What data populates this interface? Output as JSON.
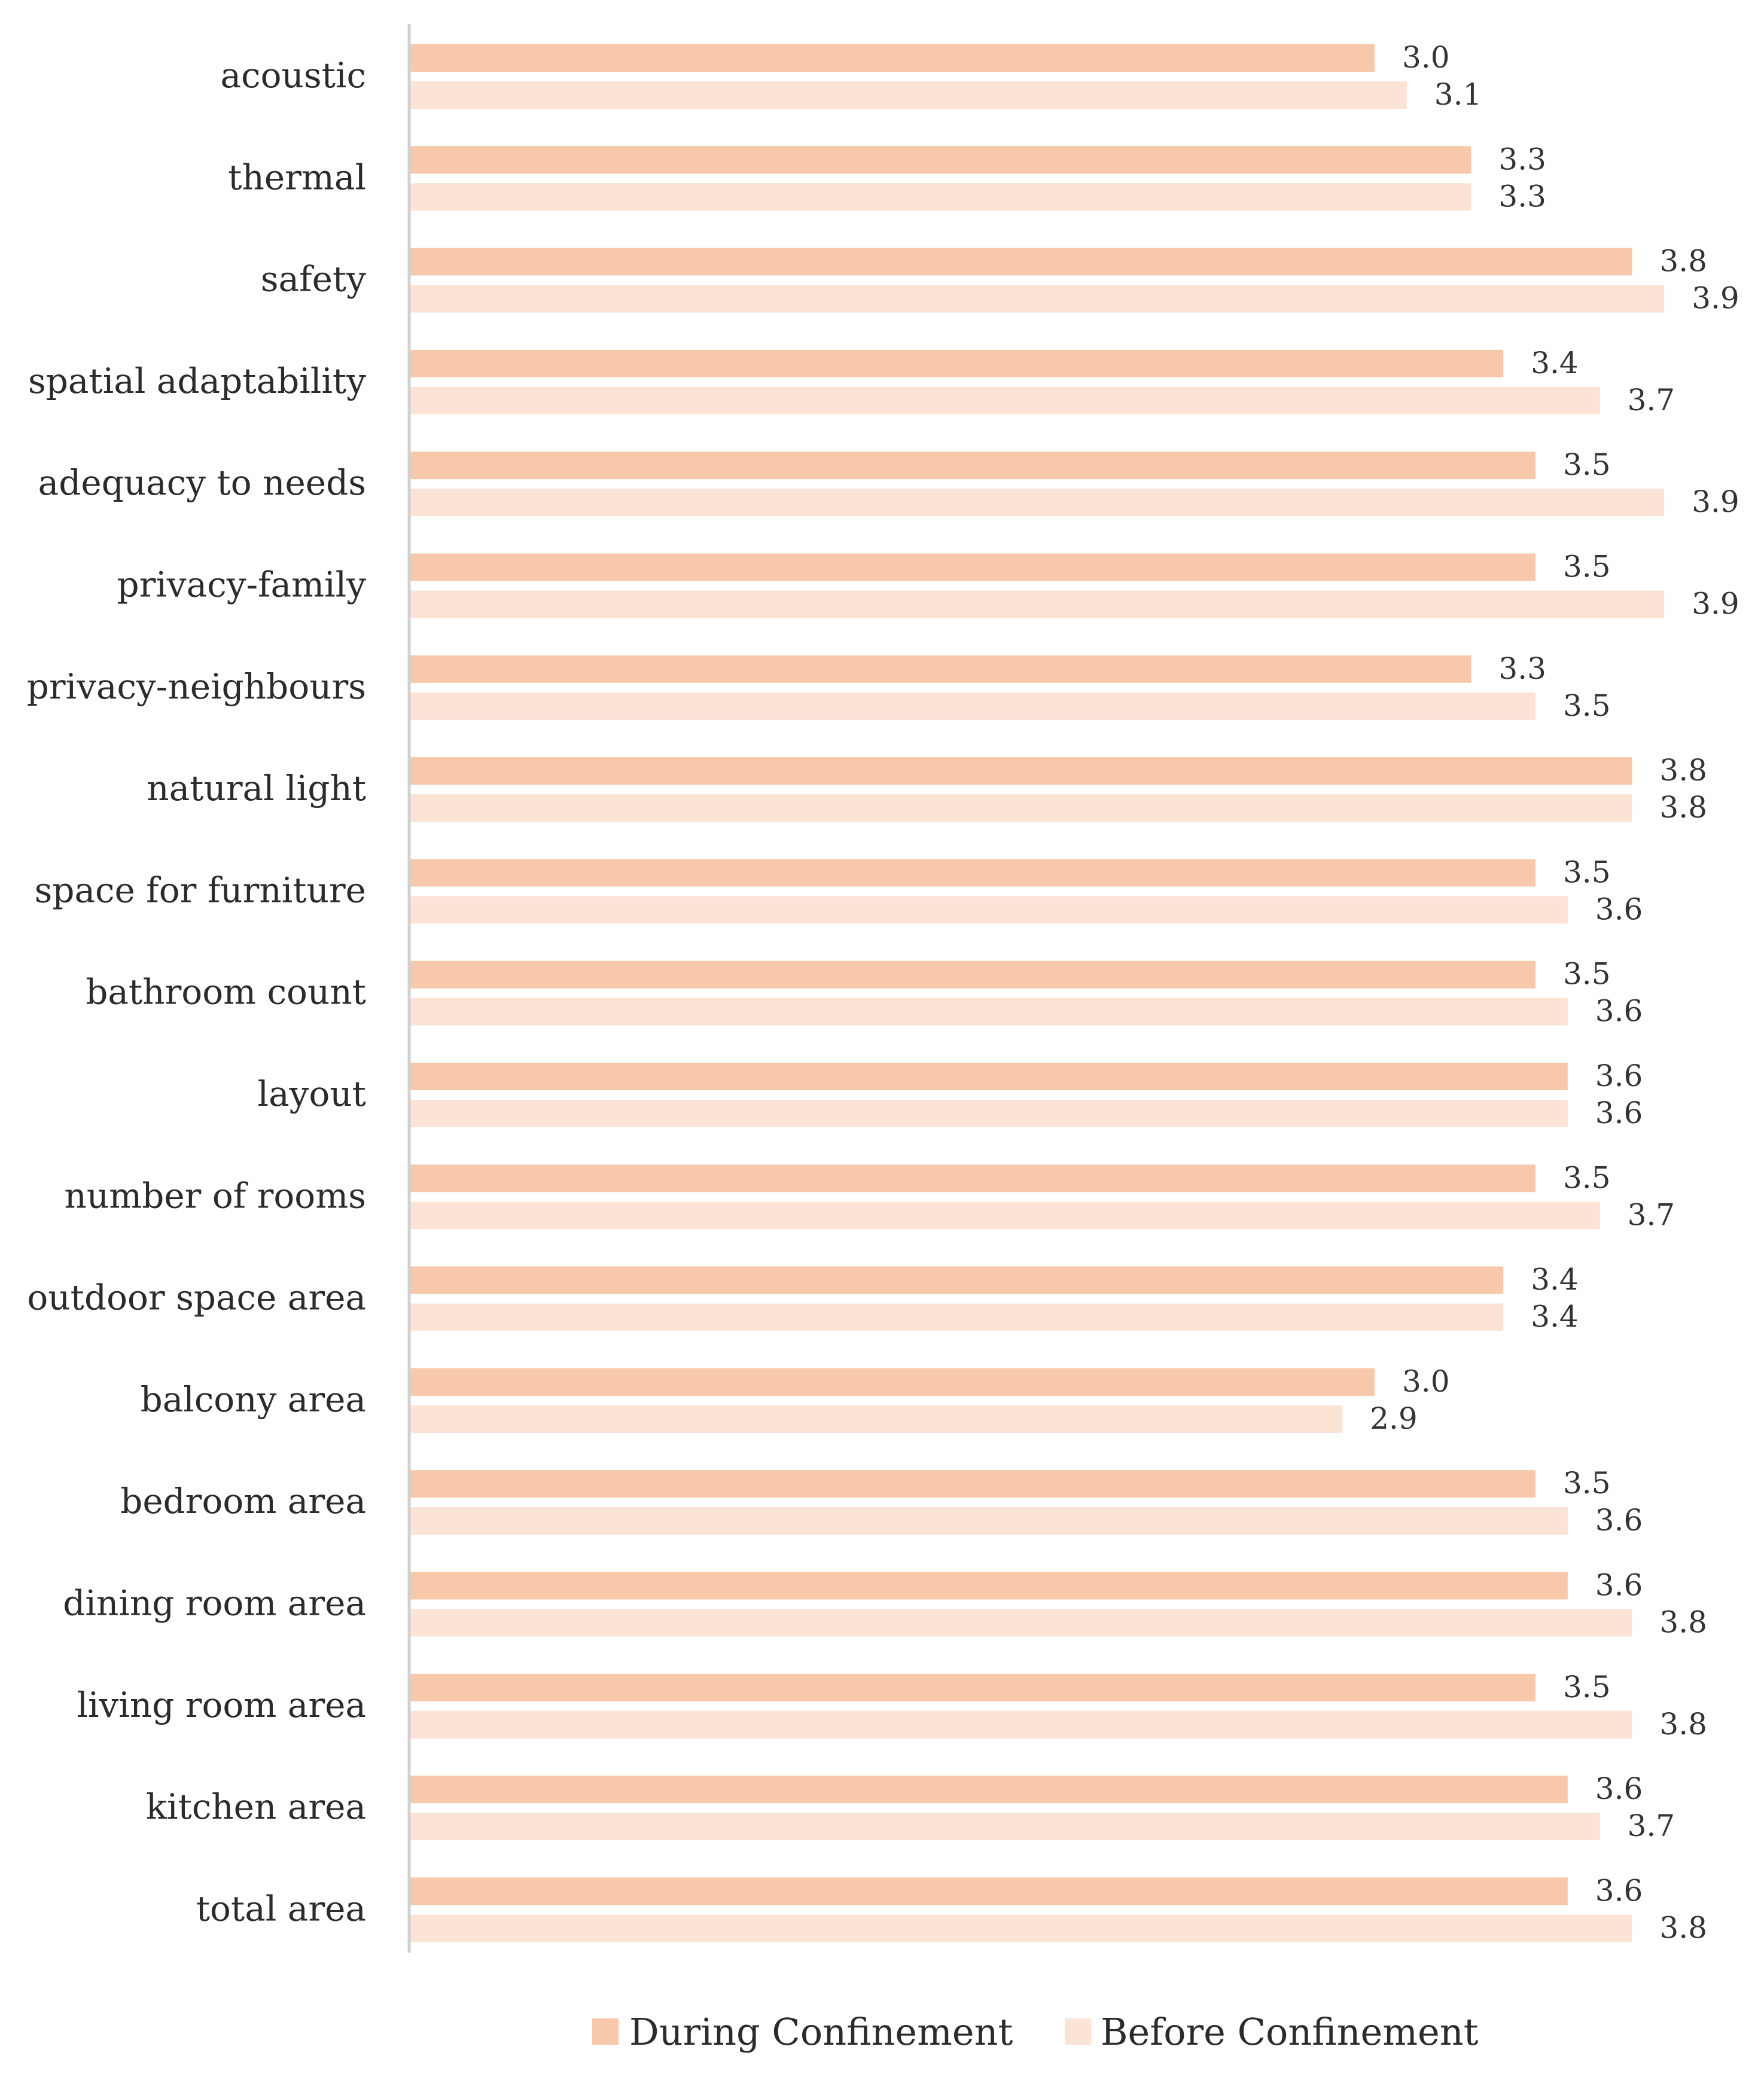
{
  "chart_data": {
    "type": "bar",
    "orientation": "horizontal",
    "title": "",
    "xlabel": "",
    "ylabel": "",
    "xlim": [
      0,
      4.2
    ],
    "grid": false,
    "legend_position": "bottom",
    "categories": [
      "acoustic",
      "thermal",
      "safety",
      "spatial adaptability",
      "adequacy to needs",
      "privacy-family",
      "privacy-neighbours",
      "natural light",
      "space for furniture",
      "bathroom count",
      "layout",
      "number of rooms",
      "outdoor space area",
      "balcony area",
      "bedroom area",
      "dining room area",
      "living room area",
      "kitchen area",
      "total area"
    ],
    "series": [
      {
        "name": "During Confinement",
        "color": "#f7c8a9",
        "values": [
          3.0,
          3.3,
          3.8,
          3.4,
          3.5,
          3.5,
          3.3,
          3.8,
          3.5,
          3.5,
          3.6,
          3.5,
          3.4,
          3.0,
          3.5,
          3.6,
          3.5,
          3.6,
          3.6
        ],
        "labels": [
          "3.0",
          "3.3",
          "3.8",
          "3.4",
          "3.5",
          "3.5",
          "3.3",
          "3.8",
          "3.5",
          "3.5",
          "3.6",
          "3.5",
          "3.4",
          "3.0",
          "3.5",
          "3.6",
          "3.5",
          "3.6",
          "3.6"
        ]
      },
      {
        "name": "Before Confinement",
        "color": "#fbe3d6",
        "values": [
          3.1,
          3.3,
          3.9,
          3.7,
          3.9,
          3.9,
          3.5,
          3.8,
          3.6,
          3.6,
          3.6,
          3.7,
          3.4,
          2.9,
          3.6,
          3.8,
          3.8,
          3.7,
          3.8
        ],
        "labels": [
          "3.1",
          "3.3",
          "3.9",
          "3.7",
          "3.9",
          "3.9",
          "3.5",
          "3.8",
          "3.6",
          "3.6",
          "3.6",
          "3.7",
          "3.4",
          "2.9",
          "3.6",
          "3.8",
          "3.8",
          "3.7",
          "3.8"
        ]
      }
    ]
  },
  "colors": {
    "axis_line": "#d0d0d0"
  }
}
